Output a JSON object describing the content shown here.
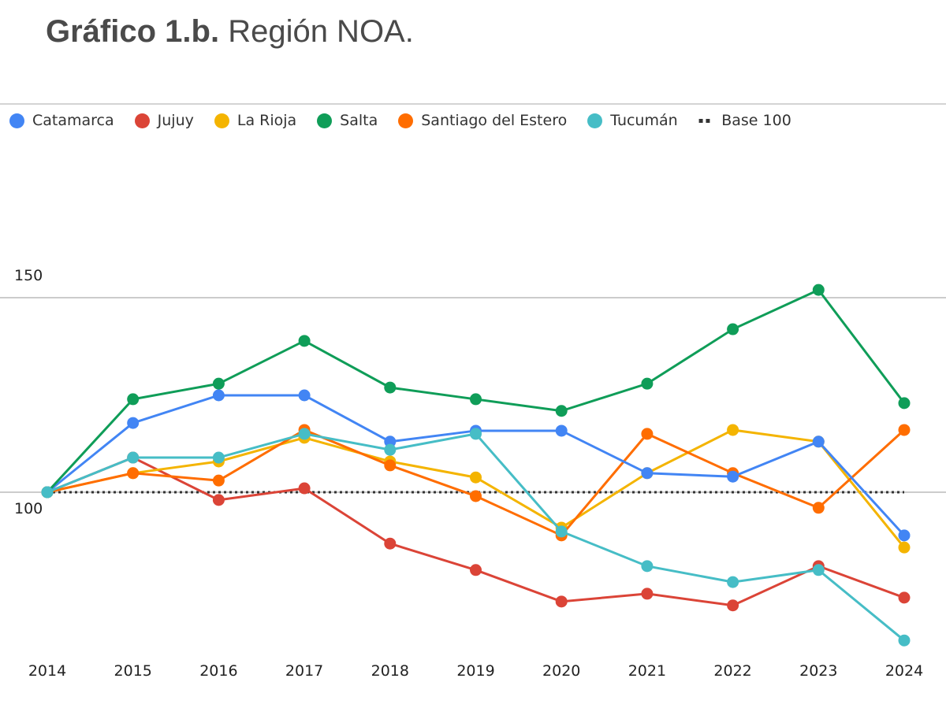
{
  "title": {
    "bold": "Gráfico 1.b.",
    "rest": "Región NOA."
  },
  "chart_data": {
    "type": "line",
    "title": "Gráfico 1.b. Región NOA.",
    "x": [
      "2014",
      "2015",
      "2016",
      "2017",
      "2018",
      "2019",
      "2020",
      "2021",
      "2022",
      "2023",
      "2024"
    ],
    "yticks": [
      "100",
      "150"
    ],
    "ylim": [
      60,
      150
    ],
    "grid": true,
    "legend": "top",
    "series": [
      {
        "name": "Catamarca",
        "color": "#4285f4",
        "values": [
          100,
          117.8,
          124.9,
          124.9,
          113,
          115.8,
          115.8,
          104.9,
          104,
          113,
          88.9
        ]
      },
      {
        "name": "Jujuy",
        "color": "#db4437",
        "values": [
          100,
          108.9,
          98,
          101,
          86.8,
          80,
          71.9,
          73.9,
          70.9,
          81,
          72.9
        ]
      },
      {
        "name": "La Rioja",
        "color": "#f4b400",
        "values": [
          100,
          104.9,
          107.9,
          114,
          107.9,
          103.8,
          90.9,
          104.9,
          116,
          113,
          85.8
        ]
      },
      {
        "name": "Salta",
        "color": "#0f9d58",
        "values": [
          100,
          123.9,
          127.9,
          138.9,
          126.9,
          123.9,
          120.9,
          127.9,
          141.9,
          152,
          122.9
        ]
      },
      {
        "name": "Santiago del Estero",
        "color": "#ff6d00",
        "values": [
          100,
          104.9,
          103,
          116,
          106.9,
          99,
          88.9,
          115,
          104.9,
          96,
          116
        ]
      },
      {
        "name": "Tucumán",
        "color": "#46bdc6",
        "values": [
          100,
          108.9,
          108.9,
          115,
          110.9,
          115,
          89.9,
          81,
          76.9,
          80,
          61.9
        ]
      },
      {
        "name": "Base 100",
        "color": "#333333",
        "dotted": true,
        "values": [
          100,
          100,
          100,
          100,
          100,
          100,
          100,
          100,
          100,
          100,
          100
        ]
      }
    ]
  }
}
